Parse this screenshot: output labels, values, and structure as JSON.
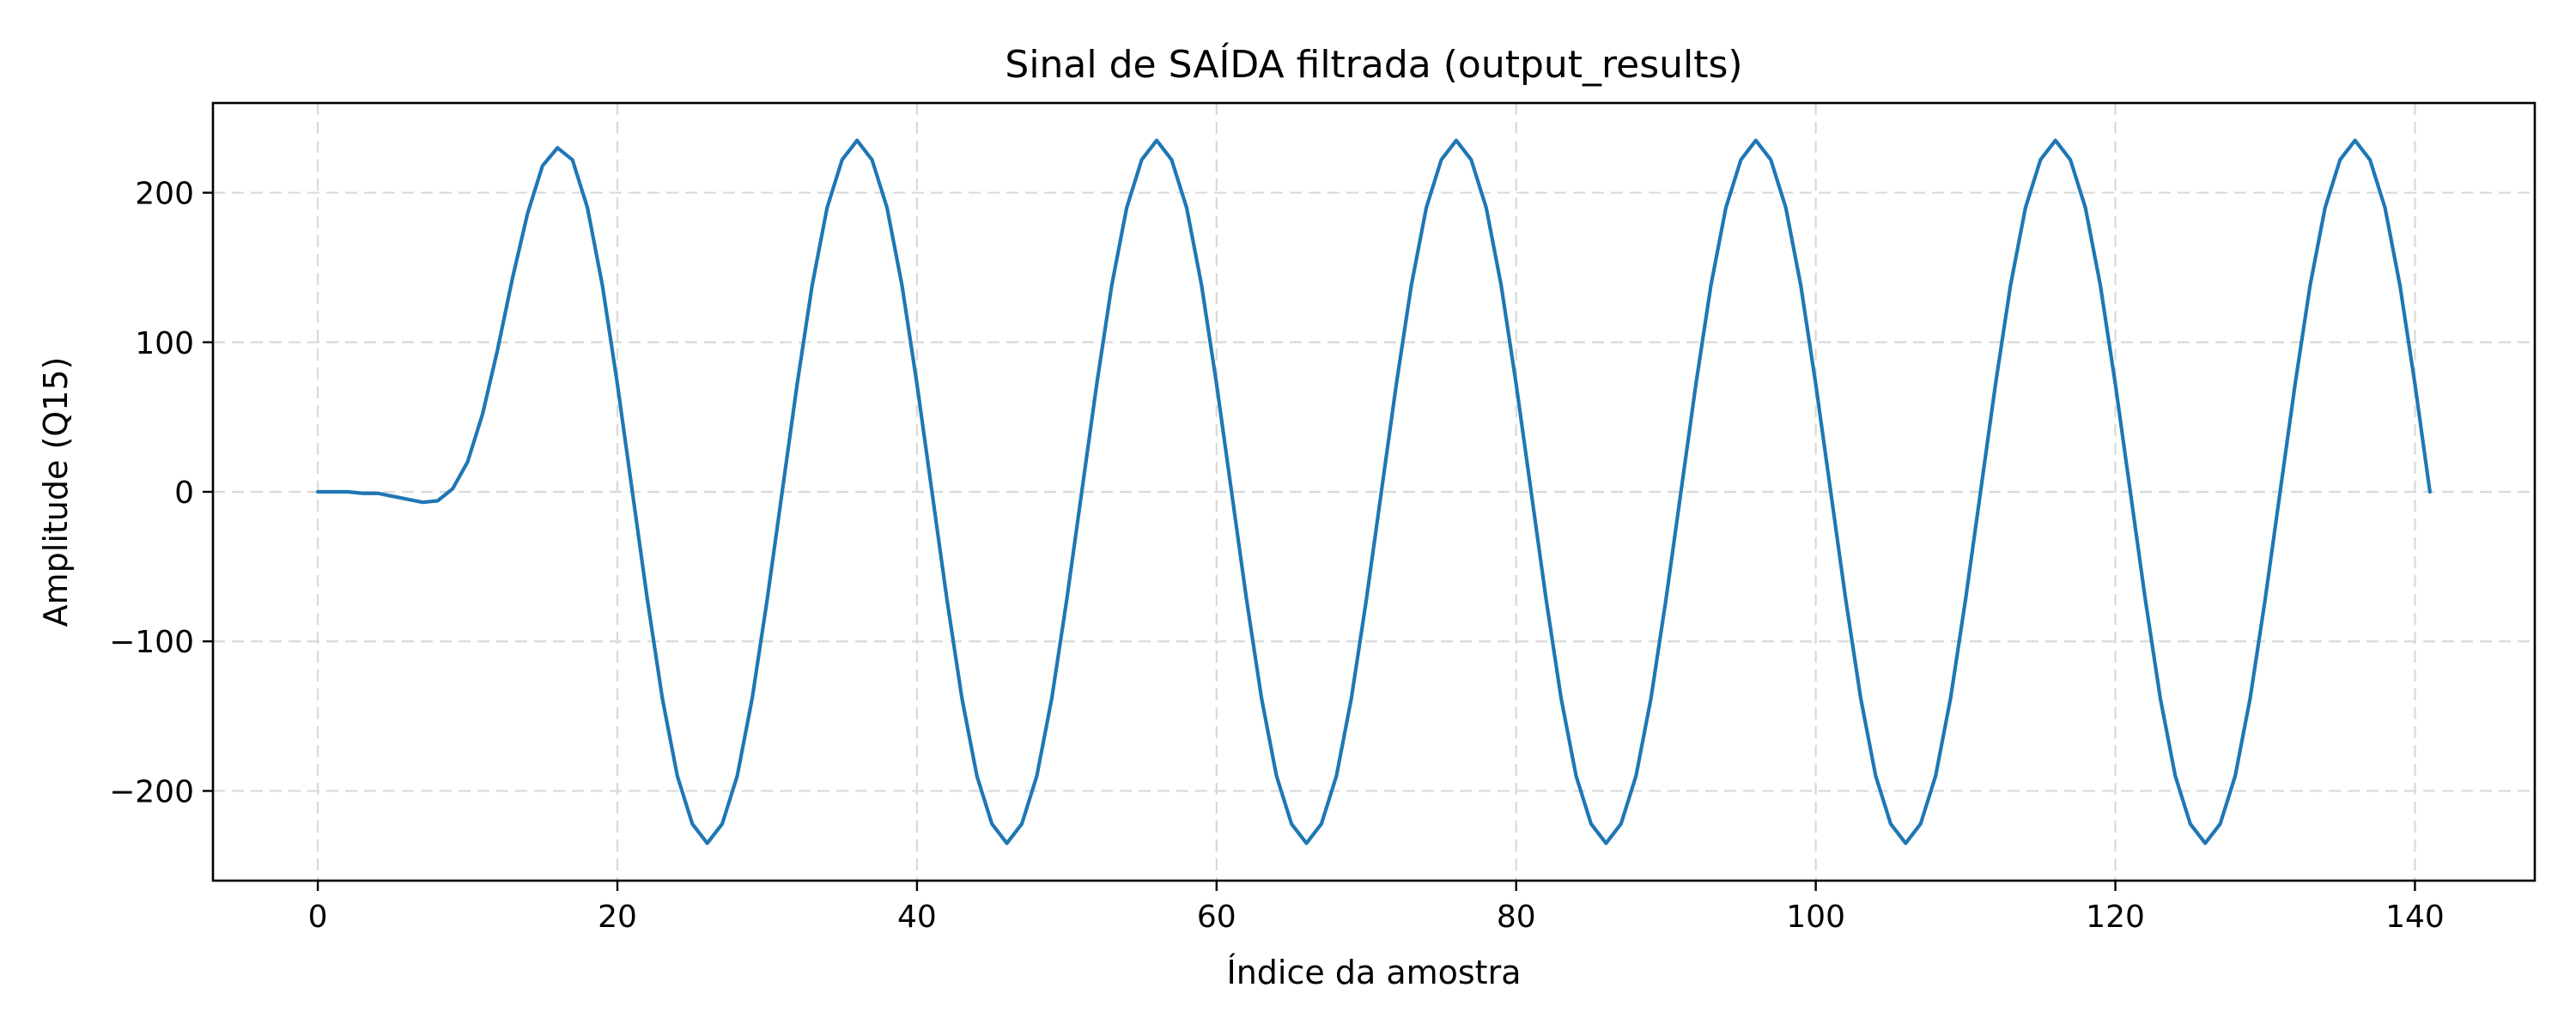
{
  "chart_data": {
    "type": "line",
    "title": "Sinal de SAÍDA filtrada (output_results)",
    "xlabel": "Índice da amostra",
    "ylabel": "Amplitude (Q15)",
    "xlim": [
      -7,
      148
    ],
    "ylim": [
      -260,
      260
    ],
    "xticks": [
      0,
      20,
      40,
      60,
      80,
      100,
      120,
      140
    ],
    "xtick_labels": [
      "0",
      "20",
      "40",
      "60",
      "80",
      "100",
      "120",
      "140"
    ],
    "yticks": [
      -200,
      -100,
      0,
      100,
      200
    ],
    "ytick_labels": [
      "−200",
      "−100",
      "0",
      "100",
      "200"
    ],
    "grid": true,
    "legend": "none",
    "series": [
      {
        "color": "#1f77b4",
        "x": [
          0,
          1,
          2,
          3,
          4,
          5,
          6,
          7,
          8,
          9,
          10,
          11,
          12,
          13,
          14,
          15,
          16,
          17,
          18,
          19,
          20,
          21,
          22,
          23,
          24,
          25,
          26,
          27,
          28,
          29,
          30,
          31,
          32,
          33,
          34,
          35,
          36,
          37,
          38,
          39,
          40,
          41,
          42,
          43,
          44,
          45,
          46,
          47,
          48,
          49,
          50,
          51,
          52,
          53,
          54,
          55,
          56,
          57,
          58,
          59,
          60,
          61,
          62,
          63,
          64,
          65,
          66,
          67,
          68,
          69,
          70,
          71,
          72,
          73,
          74,
          75,
          76,
          77,
          78,
          79,
          80,
          81,
          82,
          83,
          84,
          85,
          86,
          87,
          88,
          89,
          90,
          91,
          92,
          93,
          94,
          95,
          96,
          97,
          98,
          99,
          100,
          101,
          102,
          103,
          104,
          105,
          106,
          107,
          108,
          109,
          110,
          111,
          112,
          113,
          114,
          115,
          116,
          117,
          118,
          119,
          120,
          121,
          122,
          123,
          124,
          125,
          126,
          127,
          128,
          129,
          130,
          131,
          132,
          133,
          134,
          135,
          136,
          137,
          138,
          139,
          140,
          141
        ],
        "y": [
          0,
          0,
          0,
          -1,
          -1,
          -3,
          -5,
          -7,
          -6,
          2,
          20,
          52,
          95,
          143,
          186,
          218,
          230,
          222,
          190,
          138,
          72,
          0,
          -72,
          -138,
          -190,
          -222,
          -235,
          -222,
          -190,
          -138,
          -72,
          0,
          72,
          138,
          190,
          222,
          235,
          222,
          190,
          138,
          72,
          0,
          -72,
          -138,
          -190,
          -222,
          -235,
          -222,
          -190,
          -138,
          -72,
          0,
          72,
          138,
          190,
          222,
          235,
          222,
          190,
          138,
          72,
          0,
          -72,
          -138,
          -190,
          -222,
          -235,
          -222,
          -190,
          -138,
          -72,
          0,
          72,
          138,
          190,
          222,
          235,
          222,
          190,
          138,
          72,
          0,
          -72,
          -138,
          -190,
          -222,
          -235,
          -222,
          -190,
          -138,
          -72,
          0,
          72,
          138,
          190,
          222,
          235,
          222,
          190,
          138,
          72,
          0,
          -72,
          -138,
          -190,
          -222,
          -235,
          -222,
          -190,
          -138,
          -72,
          0,
          72,
          138,
          190,
          222,
          235,
          222,
          190,
          138,
          72,
          0,
          -72,
          -138,
          -190,
          -222,
          -235,
          -222,
          -190,
          -138,
          -72,
          0,
          72,
          138,
          190,
          222,
          235,
          222,
          190,
          138,
          72,
          0
        ]
      }
    ]
  }
}
